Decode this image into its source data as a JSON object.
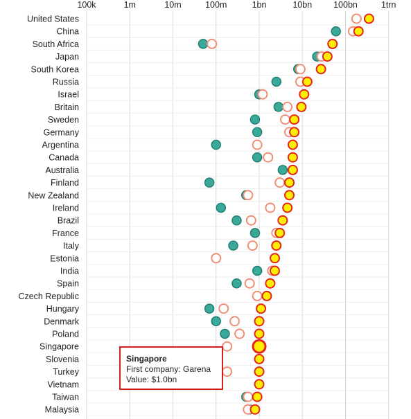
{
  "chart_data": {
    "type": "scatter",
    "x_scale": "log",
    "x_ticks": [
      "100k",
      "1m",
      "10m",
      "100m",
      "1bn",
      "10bn",
      "100bn",
      "1trn"
    ],
    "categories": [
      "United States",
      "China",
      "South Africa",
      "Japan",
      "South Korea",
      "Russia",
      "Israel",
      "Britain",
      "Sweden",
      "Germany",
      "Argentina",
      "Canada",
      "Australia",
      "Finland",
      "New Zealand",
      "Ireland",
      "Brazil",
      "France",
      "Italy",
      "Estonia",
      "India",
      "Spain",
      "Czech Republic",
      "Hungary",
      "Denmark",
      "Poland",
      "Singapore",
      "Slovenia",
      "Turkey",
      "Vietnam",
      "Taiwan",
      "Malaysia"
    ],
    "series": [
      {
        "color": "#3aa99a",
        "values": [
          null,
          60000000000.0,
          50000000.0,
          22000000000.0,
          8000000000.0,
          2500000000.0,
          1000000000.0,
          2800000000.0,
          800000000.0,
          900000000.0,
          100000000.0,
          900000000.0,
          3500000000.0,
          70000000.0,
          500000000.0,
          130000000.0,
          300000000.0,
          800000000.0,
          250000000.0,
          null,
          900000000.0,
          300000000.0,
          null,
          70000000.0,
          100000000.0,
          160000000.0,
          null,
          null,
          null,
          null,
          500000000.0,
          600000000.0
        ]
      },
      {
        "color": "#f08e74",
        "values": [
          180000000000.0,
          150000000000.0,
          80000000.0,
          28000000000.0,
          9000000000.0,
          9000000000.0,
          1200000000.0,
          4500000000.0,
          4000000000.0,
          5000000000.0,
          900000000.0,
          1600000000.0,
          null,
          3000000000.0,
          550000000.0,
          1800000000.0,
          650000000.0,
          2500000000.0,
          700000000.0,
          100000000.0,
          2000000000.0,
          600000000.0,
          900000000.0,
          150000000.0,
          270000000.0,
          350000000.0,
          180000000.0,
          null,
          180000000.0,
          null,
          550000000.0,
          550000000.0
        ]
      },
      {
        "color": "#ffee00",
        "values": [
          350000000000.0,
          200000000000.0,
          50000000000.0,
          38000000000.0,
          27000000000.0,
          13000000000.0,
          11000000000.0,
          9500000000.0,
          6500000000.0,
          6500000000.0,
          6000000000.0,
          6000000000.0,
          6000000000.0,
          5000000000.0,
          5000000000.0,
          4500000000.0,
          3500000000.0,
          3000000000.0,
          2500000000.0,
          2300000000.0,
          2300000000.0,
          1800000000.0,
          1500000000.0,
          1100000000.0,
          1000000000.0,
          1000000000.0,
          1000000000.0,
          1000000000.0,
          1000000000.0,
          1000000000.0,
          900000000.0,
          800000000.0
        ]
      }
    ],
    "highlight_category": "Singapore"
  },
  "tooltip": {
    "title": "Singapore",
    "line1": "First company: Garena",
    "line2": "Value: $1.0bn"
  }
}
